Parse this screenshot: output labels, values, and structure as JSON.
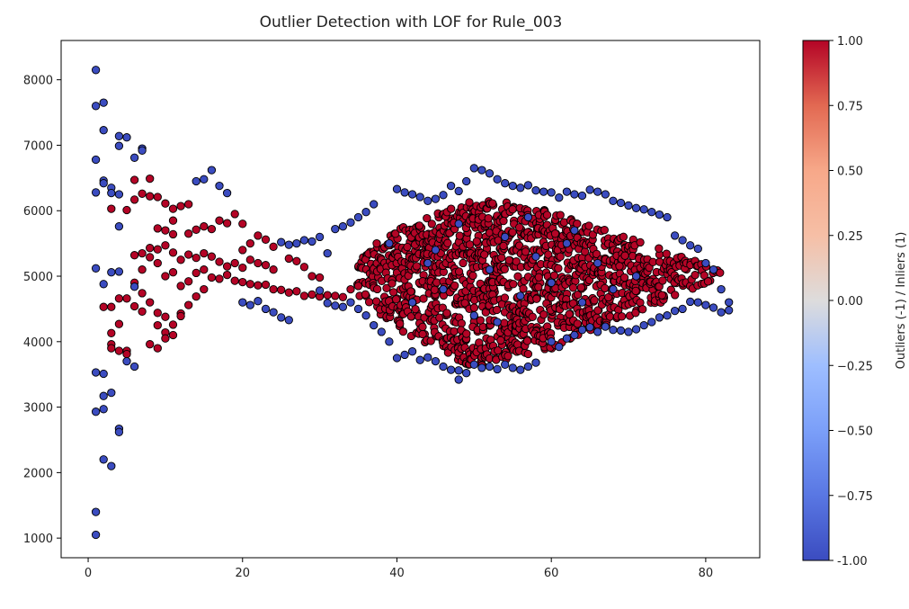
{
  "chart_data": {
    "type": "scatter",
    "title": "Outlier Detection with LOF for Rule_003",
    "xlabel": "",
    "ylabel": "",
    "xlim": [
      -3.5,
      87
    ],
    "ylim": [
      700,
      8600
    ],
    "x_ticks": [
      0,
      20,
      40,
      60,
      80
    ],
    "y_ticks": [
      1000,
      2000,
      3000,
      4000,
      5000,
      6000,
      7000,
      8000
    ],
    "grid": false,
    "marker_edge_color": "#000000",
    "colormap": "coolwarm",
    "outlier_color": "#3b4cc0",
    "inlier_color": "#b40426",
    "colorbar": {
      "label": "Outliers (-1) / Inliers (1)",
      "range": [
        -1.0,
        1.0
      ],
      "ticks": [
        "-1.00",
        "−0.75",
        "−0.50",
        "−0.25",
        "0.00",
        "0.25",
        "0.50",
        "0.75",
        "1.00"
      ],
      "tick_values": [
        -1.0,
        -0.75,
        -0.5,
        -0.25,
        0.0,
        0.25,
        0.5,
        0.75,
        1.0
      ]
    },
    "series": [
      {
        "label_value": -1,
        "points": [
          [
            1,
            8150
          ],
          [
            1,
            7600
          ],
          [
            2,
            7650
          ],
          [
            2,
            7230
          ],
          [
            1,
            6780
          ],
          [
            4,
            7140
          ],
          [
            5,
            7120
          ],
          [
            4,
            6990
          ],
          [
            7,
            6950
          ],
          [
            7,
            6920
          ],
          [
            6,
            6810
          ],
          [
            1,
            6280
          ],
          [
            2,
            6460
          ],
          [
            3,
            6350
          ],
          [
            3,
            6270
          ],
          [
            4,
            6250
          ],
          [
            2,
            6420
          ],
          [
            14,
            6450
          ],
          [
            15,
            6480
          ],
          [
            16,
            6620
          ],
          [
            17,
            6380
          ],
          [
            18,
            6270
          ],
          [
            1,
            5120
          ],
          [
            3,
            5060
          ],
          [
            4,
            5070
          ],
          [
            2,
            4880
          ],
          [
            1,
            3530
          ],
          [
            2,
            3510
          ],
          [
            1,
            2930
          ],
          [
            2,
            2970
          ],
          [
            2,
            3170
          ],
          [
            3,
            3220
          ],
          [
            4,
            2670
          ],
          [
            4,
            2620
          ],
          [
            2,
            2200
          ],
          [
            3,
            2100
          ],
          [
            1,
            1400
          ],
          [
            1,
            1050
          ],
          [
            5,
            3700
          ],
          [
            6,
            3620
          ],
          [
            4,
            5760
          ],
          [
            6,
            4840
          ],
          [
            20,
            4600
          ],
          [
            21,
            4560
          ],
          [
            22,
            4620
          ],
          [
            23,
            4500
          ],
          [
            24,
            4450
          ],
          [
            25,
            4370
          ],
          [
            26,
            4330
          ],
          [
            25,
            5520
          ],
          [
            26,
            5480
          ],
          [
            27,
            5500
          ],
          [
            28,
            5550
          ],
          [
            29,
            5530
          ],
          [
            30,
            5600
          ],
          [
            31,
            5350
          ],
          [
            32,
            5720
          ],
          [
            33,
            5760
          ],
          [
            34,
            5820
          ],
          [
            35,
            5900
          ],
          [
            36,
            5980
          ],
          [
            37,
            6100
          ],
          [
            30,
            4780
          ],
          [
            31,
            4590
          ],
          [
            32,
            4550
          ],
          [
            33,
            4530
          ],
          [
            34,
            4600
          ],
          [
            35,
            4500
          ],
          [
            36,
            4400
          ],
          [
            37,
            4250
          ],
          [
            38,
            4150
          ],
          [
            39,
            4000
          ],
          [
            40,
            3750
          ],
          [
            41,
            3800
          ],
          [
            42,
            3850
          ],
          [
            43,
            3720
          ],
          [
            44,
            3760
          ],
          [
            45,
            3700
          ],
          [
            46,
            3620
          ],
          [
            47,
            3570
          ],
          [
            48,
            3420
          ],
          [
            49,
            3520
          ],
          [
            48,
            3560
          ],
          [
            50,
            3650
          ],
          [
            51,
            3600
          ],
          [
            52,
            3620
          ],
          [
            53,
            3580
          ],
          [
            54,
            3650
          ],
          [
            55,
            3600
          ],
          [
            56,
            3570
          ],
          [
            57,
            3620
          ],
          [
            58,
            3680
          ],
          [
            40,
            6330
          ],
          [
            41,
            6280
          ],
          [
            42,
            6250
          ],
          [
            43,
            6210
          ],
          [
            44,
            6150
          ],
          [
            45,
            6180
          ],
          [
            46,
            6240
          ],
          [
            47,
            6380
          ],
          [
            48,
            6300
          ],
          [
            49,
            6450
          ],
          [
            50,
            6650
          ],
          [
            51,
            6620
          ],
          [
            52,
            6570
          ],
          [
            53,
            6480
          ],
          [
            54,
            6420
          ],
          [
            55,
            6380
          ],
          [
            56,
            6350
          ],
          [
            57,
            6390
          ],
          [
            58,
            6310
          ],
          [
            59,
            6290
          ],
          [
            60,
            6280
          ],
          [
            61,
            6200
          ],
          [
            62,
            6290
          ],
          [
            63,
            6250
          ],
          [
            64,
            6230
          ],
          [
            65,
            6320
          ],
          [
            66,
            6290
          ],
          [
            67,
            6250
          ],
          [
            68,
            6150
          ],
          [
            69,
            6120
          ],
          [
            70,
            6080
          ],
          [
            71,
            6040
          ],
          [
            72,
            6020
          ],
          [
            73,
            5980
          ],
          [
            74,
            5940
          ],
          [
            75,
            5900
          ],
          [
            76,
            5620
          ],
          [
            77,
            5550
          ],
          [
            78,
            5470
          ],
          [
            79,
            5420
          ],
          [
            80,
            5200
          ],
          [
            81,
            5100
          ],
          [
            82,
            4800
          ],
          [
            83,
            4600
          ],
          [
            83,
            4480
          ],
          [
            82,
            4450
          ],
          [
            81,
            4520
          ],
          [
            80,
            4560
          ],
          [
            79,
            4600
          ],
          [
            78,
            4610
          ],
          [
            60,
            4000
          ],
          [
            61,
            3920
          ],
          [
            62,
            4050
          ],
          [
            63,
            4100
          ],
          [
            64,
            4180
          ],
          [
            65,
            4220
          ],
          [
            66,
            4150
          ],
          [
            67,
            4230
          ],
          [
            68,
            4180
          ],
          [
            69,
            4170
          ],
          [
            70,
            4150
          ],
          [
            71,
            4190
          ],
          [
            72,
            4250
          ],
          [
            73,
            4300
          ],
          [
            74,
            4370
          ],
          [
            75,
            4400
          ],
          [
            76,
            4470
          ],
          [
            77,
            4500
          ],
          [
            42,
            4600
          ],
          [
            44,
            5200
          ],
          [
            46,
            4800
          ],
          [
            48,
            5800
          ],
          [
            50,
            4400
          ],
          [
            52,
            5100
          ],
          [
            54,
            5600
          ],
          [
            56,
            4700
          ],
          [
            58,
            5300
          ],
          [
            60,
            4900
          ],
          [
            62,
            5500
          ],
          [
            64,
            4600
          ],
          [
            66,
            5200
          ],
          [
            68,
            4800
          ],
          [
            45,
            5400
          ],
          [
            53,
            4300
          ],
          [
            57,
            5900
          ],
          [
            63,
            5700
          ],
          [
            71,
            5000
          ],
          [
            39,
            5500
          ]
        ]
      },
      {
        "label_value": 1,
        "generated_body": true,
        "points": [
          [
            2,
            4530
          ],
          [
            3,
            4530
          ],
          [
            3,
            4130
          ],
          [
            3,
            3960
          ],
          [
            4,
            3860
          ],
          [
            5,
            3860
          ],
          [
            5,
            3810
          ],
          [
            3,
            3900
          ],
          [
            4,
            4270
          ],
          [
            5,
            4660
          ],
          [
            4,
            4660
          ],
          [
            3,
            6030
          ],
          [
            5,
            6010
          ],
          [
            6,
            6170
          ],
          [
            6,
            6470
          ],
          [
            7,
            6260
          ],
          [
            8,
            6220
          ],
          [
            8,
            6490
          ],
          [
            9,
            6210
          ],
          [
            10,
            6110
          ],
          [
            11,
            5850
          ],
          [
            11,
            6030
          ],
          [
            12,
            6070
          ],
          [
            13,
            6100
          ],
          [
            13,
            5650
          ],
          [
            14,
            5710
          ],
          [
            15,
            5760
          ],
          [
            16,
            5720
          ],
          [
            17,
            5850
          ],
          [
            18,
            5810
          ],
          [
            19,
            5950
          ],
          [
            20,
            5800
          ],
          [
            6,
            5320
          ],
          [
            7,
            5350
          ],
          [
            8,
            5290
          ],
          [
            8,
            5430
          ],
          [
            9,
            5410
          ],
          [
            10,
            5470
          ],
          [
            11,
            5360
          ],
          [
            12,
            5250
          ],
          [
            13,
            5330
          ],
          [
            14,
            5280
          ],
          [
            15,
            5350
          ],
          [
            16,
            5300
          ],
          [
            17,
            5220
          ],
          [
            18,
            5150
          ],
          [
            19,
            5200
          ],
          [
            20,
            5130
          ],
          [
            21,
            5250
          ],
          [
            22,
            5200
          ],
          [
            23,
            5170
          ],
          [
            24,
            5100
          ],
          [
            6,
            4540
          ],
          [
            7,
            4460
          ],
          [
            8,
            4600
          ],
          [
            9,
            4440
          ],
          [
            10,
            4380
          ],
          [
            11,
            4260
          ],
          [
            12,
            4430
          ],
          [
            13,
            4560
          ],
          [
            14,
            4690
          ],
          [
            15,
            4800
          ],
          [
            9,
            4250
          ],
          [
            10,
            4140
          ],
          [
            8,
            3960
          ],
          [
            9,
            3900
          ],
          [
            10,
            4050
          ],
          [
            11,
            4100
          ],
          [
            12,
            4390
          ],
          [
            7,
            4740
          ],
          [
            6,
            4900
          ],
          [
            7,
            5100
          ],
          [
            16,
            4980
          ],
          [
            17,
            4960
          ],
          [
            18,
            5020
          ],
          [
            19,
            4930
          ],
          [
            20,
            4910
          ],
          [
            21,
            4880
          ],
          [
            22,
            4860
          ],
          [
            23,
            4870
          ],
          [
            24,
            4800
          ],
          [
            25,
            4790
          ],
          [
            26,
            4750
          ],
          [
            27,
            4770
          ],
          [
            28,
            4700
          ],
          [
            29,
            4720
          ],
          [
            30,
            4690
          ],
          [
            31,
            4710
          ],
          [
            32,
            4700
          ],
          [
            33,
            4680
          ],
          [
            34,
            4800
          ],
          [
            35,
            4850
          ],
          [
            20,
            5400
          ],
          [
            21,
            5500
          ],
          [
            22,
            5620
          ],
          [
            23,
            5560
          ],
          [
            24,
            5450
          ],
          [
            26,
            5270
          ],
          [
            27,
            5230
          ],
          [
            28,
            5140
          ],
          [
            29,
            5000
          ],
          [
            30,
            4980
          ],
          [
            12,
            4850
          ],
          [
            13,
            4920
          ],
          [
            14,
            5050
          ],
          [
            15,
            5100
          ],
          [
            10,
            5000
          ],
          [
            11,
            5060
          ],
          [
            9,
            5200
          ],
          [
            9,
            5730
          ],
          [
            10,
            5700
          ],
          [
            11,
            5640
          ]
        ]
      }
    ]
  }
}
